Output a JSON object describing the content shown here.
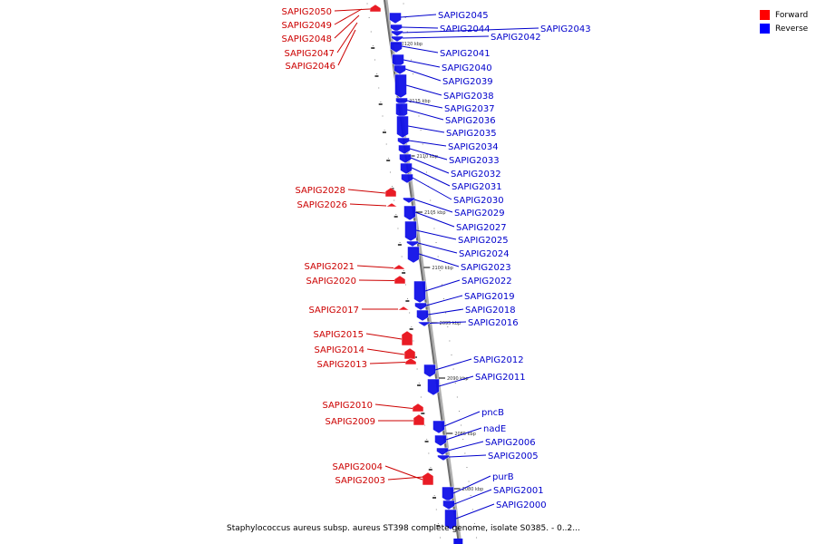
{
  "legend": {
    "items": [
      {
        "label": "Forward",
        "color": "#ff0000"
      },
      {
        "label": "Reverse",
        "color": "#0000ff"
      }
    ]
  },
  "caption": "Staphylococcus aureus subsp. aureus ST398 complete genome, isolate S0385. - 0..2...",
  "colors": {
    "forward": "#e8101a",
    "reverse": "#1010e8",
    "forward_text": "#cc0000",
    "reverse_text": "#0000cc"
  },
  "kbp_ticks": [
    "2120 kbp",
    "2115 kbp",
    "2110 kbp",
    "2105 kbp",
    "2100 kbp",
    "2095 kbp",
    "2090 kbp",
    "2085 kbp",
    "2080 kbp"
  ],
  "forward_genes": [
    "SAPIG2050",
    "SAPIG2049",
    "SAPIG2048",
    "SAPIG2047",
    "SAPIG2046",
    "SAPIG2028",
    "SAPIG2026",
    "SAPIG2021",
    "SAPIG2020",
    "SAPIG2017",
    "SAPIG2015",
    "SAPIG2014",
    "SAPIG2013",
    "SAPIG2010",
    "SAPIG2009",
    "SAPIG2004",
    "SAPIG2003"
  ],
  "reverse_genes": [
    "SAPIG2045",
    "SAPIG2044",
    "SAPIG2043",
    "SAPIG2042",
    "SAPIG2041",
    "SAPIG2040",
    "SAPIG2039",
    "SAPIG2038",
    "SAPIG2037",
    "SAPIG2036",
    "SAPIG2035",
    "SAPIG2034",
    "SAPIG2033",
    "SAPIG2032",
    "SAPIG2031",
    "SAPIG2030",
    "SAPIG2029",
    "SAPIG2027",
    "SAPIG2025",
    "SAPIG2024",
    "SAPIG2023",
    "SAPIG2022",
    "SAPIG2019",
    "SAPIG2018",
    "SAPIG2016",
    "SAPIG2012",
    "SAPIG2011",
    "pncB",
    "nadE",
    "SAPIG2006",
    "SAPIG2005",
    "purB",
    "SAPIG2001",
    "SAPIG2000"
  ]
}
